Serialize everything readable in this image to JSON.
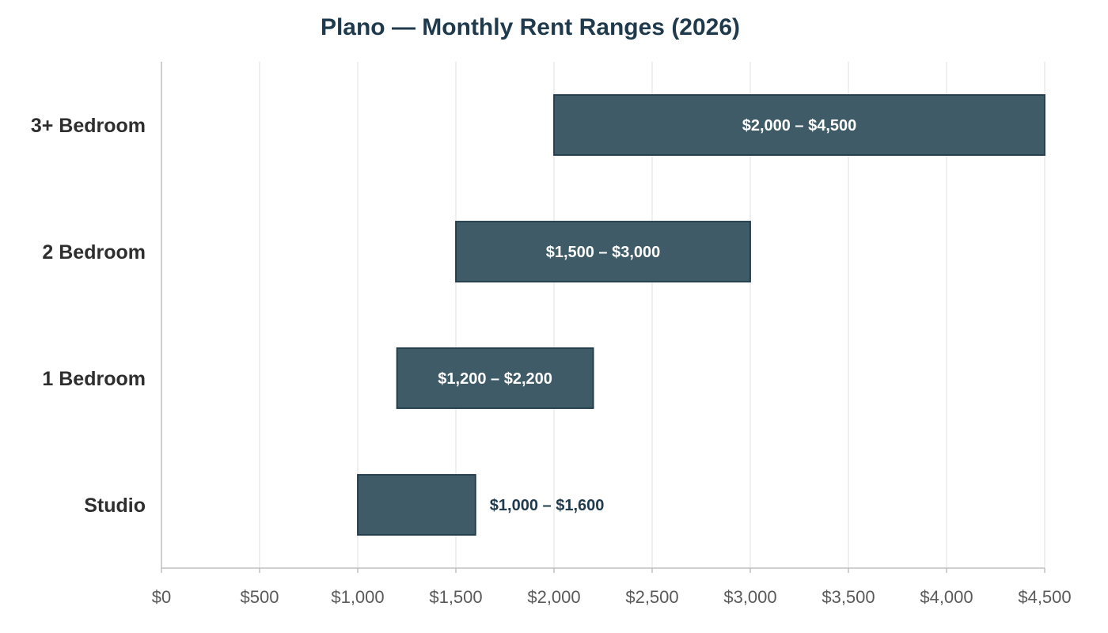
{
  "chart_data": {
    "type": "bar",
    "orientation": "horizontal-range",
    "title": "Plano — Monthly Rent Ranges (2026)",
    "xlabel": "",
    "ylabel": "",
    "categories": [
      "3+ Bedroom",
      "2 Bedroom",
      "1 Bedroom",
      "Studio"
    ],
    "series": [
      {
        "ranges": [
          [
            2000,
            4500
          ],
          [
            1500,
            3000
          ],
          [
            1200,
            2200
          ],
          [
            1000,
            1600
          ]
        ],
        "labels": [
          "$2,000 – $4,500",
          "$1,500 – $3,000",
          "$1,200 – $2,200",
          "$1,000 – $1,600"
        ],
        "label_position": [
          "inside",
          "inside",
          "inside",
          "outside"
        ]
      }
    ],
    "xlim": [
      0,
      4500
    ],
    "x_ticks": [
      0,
      500,
      1000,
      1500,
      2000,
      2500,
      3000,
      3500,
      4000,
      4500
    ],
    "x_tick_labels": [
      "$0",
      "$500",
      "$1,000",
      "$1,500",
      "$2,000",
      "$2,500",
      "$3,000",
      "$3,500",
      "$4,000",
      "$4,500"
    ],
    "grid": "vertical",
    "legend": "none",
    "colors": {
      "bar_fill": "#3e5b67",
      "bar_edge": "#1e3a4c",
      "label_inside": "#ffffff",
      "label_outside": "#1e3a4c",
      "title": "#1e3a4c"
    }
  }
}
